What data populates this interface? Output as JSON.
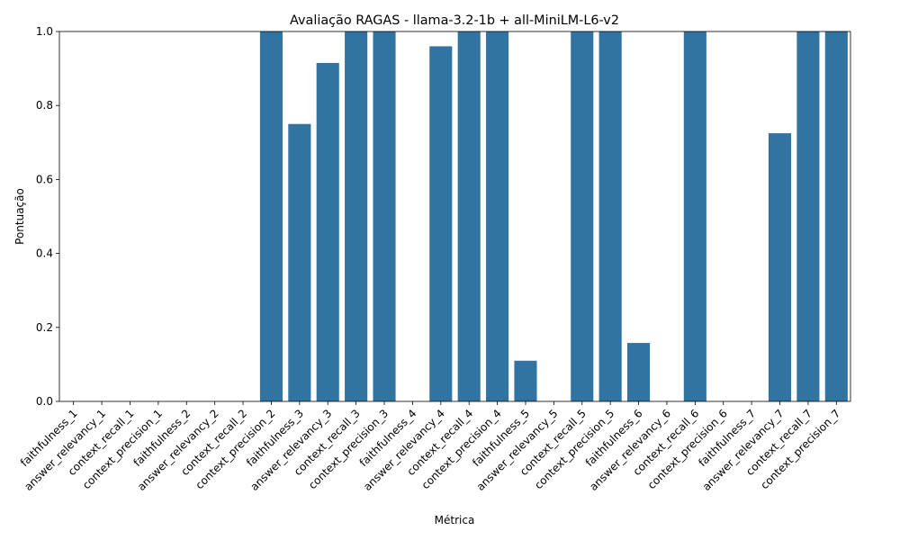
{
  "chart_data": {
    "type": "bar",
    "title": "Avaliação RAGAS - llama-3.2-1b + all-MiniLM-L6-v2",
    "xlabel": "Métrica",
    "ylabel": "Pontuação",
    "ylim": [
      0,
      1.0
    ],
    "yticks": [
      "0.0",
      "0.2",
      "0.4",
      "0.6",
      "0.8",
      "1.0"
    ],
    "grid": false,
    "bar_color": "#3274a1",
    "categories": [
      "faithfulness_1",
      "answer_relevancy_1",
      "context_recall_1",
      "context_precision_1",
      "faithfulness_2",
      "answer_relevancy_2",
      "context_recall_2",
      "context_precision_2",
      "faithfulness_3",
      "answer_relevancy_3",
      "context_recall_3",
      "context_precision_3",
      "faithfulness_4",
      "answer_relevancy_4",
      "context_recall_4",
      "context_precision_4",
      "faithfulness_5",
      "answer_relevancy_5",
      "context_recall_5",
      "context_precision_5",
      "faithfulness_6",
      "answer_relevancy_6",
      "context_recall_6",
      "context_precision_6",
      "faithfulness_7",
      "answer_relevancy_7",
      "context_recall_7",
      "context_precision_7"
    ],
    "values": [
      0,
      0,
      0,
      0,
      0,
      0,
      0,
      1.0,
      0.75,
      0.915,
      1.0,
      1.0,
      0,
      0.96,
      1.0,
      1.0,
      0.11,
      0,
      1.0,
      1.0,
      0.158,
      0,
      1.0,
      0,
      0,
      0.725,
      1.0,
      1.0
    ]
  }
}
